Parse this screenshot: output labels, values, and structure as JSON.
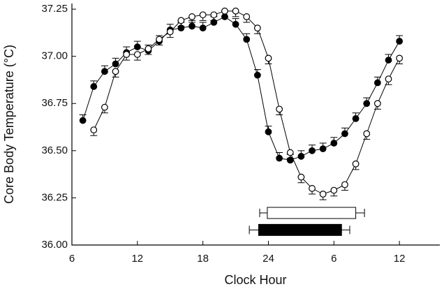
{
  "chart_data": {
    "type": "line",
    "x_label": "Clock Hour",
    "y_label": "Core Body Temperature (°C)",
    "xlim": [
      6,
      39.7
    ],
    "xticks": [
      6,
      12,
      18,
      24,
      {
        "value": 30,
        "label": "6"
      },
      {
        "value": 36,
        "label": "12"
      }
    ],
    "ylim": [
      36.0,
      37.28
    ],
    "yticks": [
      {
        "value": 36.0,
        "label": "36.00"
      },
      {
        "value": 36.25,
        "label": "36.25"
      },
      {
        "value": 36.5,
        "label": "36.50"
      },
      {
        "value": 36.75,
        "label": "36.75"
      },
      {
        "value": 37.0,
        "label": "37.00"
      },
      {
        "value": 37.25,
        "label": "37.25"
      }
    ],
    "series": [
      {
        "color": "#000000",
        "marker": "filled",
        "error_direction": "up",
        "x": [
          7,
          8,
          9,
          10,
          11,
          12,
          13,
          14,
          15,
          16,
          17,
          18,
          19,
          20,
          21,
          22,
          23,
          24,
          25,
          26,
          27,
          28,
          29,
          30,
          31,
          32,
          33,
          34,
          35,
          36
        ],
        "values": [
          36.66,
          36.84,
          36.92,
          36.96,
          37.02,
          37.05,
          37.03,
          37.08,
          37.14,
          37.15,
          37.16,
          37.15,
          37.18,
          37.21,
          37.17,
          37.09,
          36.9,
          36.6,
          36.46,
          36.45,
          36.47,
          36.5,
          36.51,
          36.54,
          36.59,
          36.67,
          36.75,
          36.86,
          36.98,
          37.08
        ],
        "errors": [
          0.03,
          0.03,
          0.03,
          0.03,
          0.03,
          0.03,
          0.03,
          0.03,
          0.03,
          0.03,
          0.03,
          0.03,
          0.03,
          0.03,
          0.03,
          0.03,
          0.03,
          0.03,
          0.03,
          0.03,
          0.03,
          0.03,
          0.03,
          0.03,
          0.03,
          0.03,
          0.03,
          0.03,
          0.03,
          0.03
        ]
      },
      {
        "color": "#000000",
        "marker": "open",
        "error_direction": "down",
        "x": [
          8,
          9,
          10,
          11,
          12,
          13,
          14,
          15,
          16,
          17,
          18,
          19,
          20,
          21,
          22,
          23,
          24,
          25,
          26,
          27,
          28,
          29,
          30,
          31,
          32,
          33,
          34,
          35,
          36
        ],
        "values": [
          36.61,
          36.73,
          36.92,
          37.01,
          37.01,
          37.04,
          37.09,
          37.13,
          37.19,
          37.21,
          37.22,
          37.22,
          37.24,
          37.24,
          37.21,
          37.15,
          36.99,
          36.72,
          36.49,
          36.36,
          36.3,
          36.27,
          36.29,
          36.32,
          36.43,
          36.59,
          36.75,
          36.88,
          36.99
        ],
        "errors": [
          0.03,
          0.03,
          0.03,
          0.03,
          0.03,
          0.03,
          0.03,
          0.03,
          0.03,
          0.03,
          0.03,
          0.03,
          0.03,
          0.03,
          0.03,
          0.03,
          0.03,
          0.03,
          0.03,
          0.03,
          0.03,
          0.03,
          0.03,
          0.03,
          0.03,
          0.03,
          0.03,
          0.03,
          0.03
        ]
      }
    ],
    "sleep_bars": [
      {
        "fill": "#ffffff",
        "y": 36.17,
        "start": 23.9,
        "end": 32.0,
        "lower": 23.2,
        "upper": 32.8
      },
      {
        "fill": "#000000",
        "y": 36.08,
        "start": 23.1,
        "end": 30.7,
        "lower": 22.25,
        "upper": 31.45
      }
    ]
  }
}
